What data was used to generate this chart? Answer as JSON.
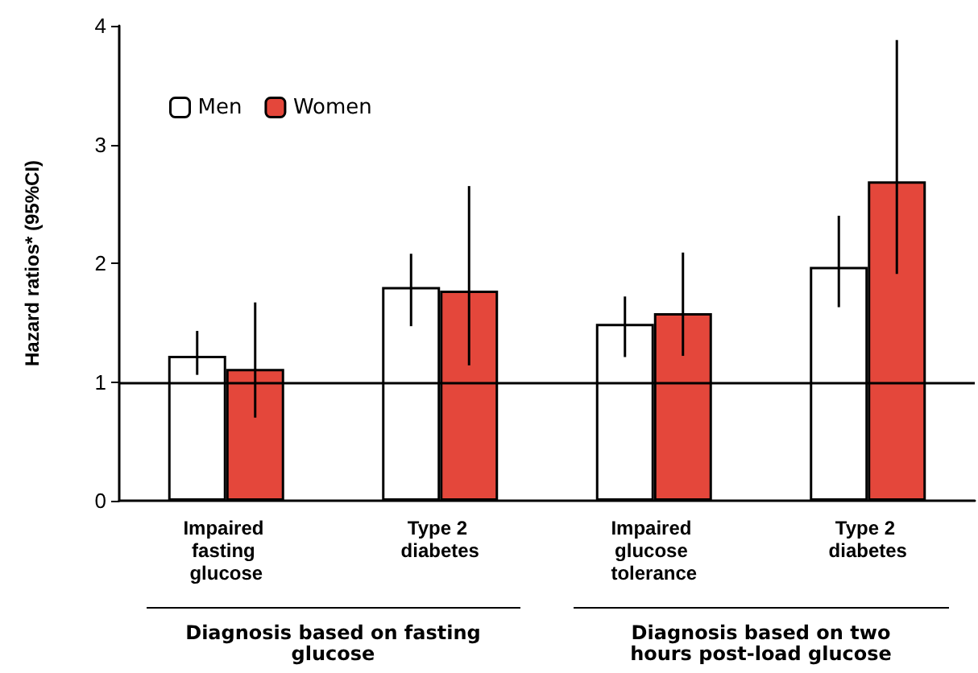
{
  "chart_data": {
    "type": "bar",
    "ylabel": "Hazard ratios* (95%CI)",
    "categories": [
      "Impaired fasting glucose",
      "Type 2 diabetes",
      "Impaired glucose tolerance",
      "Type 2 diabetes"
    ],
    "series": [
      {
        "name": "Men",
        "color": "#ffffff",
        "values": [
          1.22,
          1.8,
          1.49,
          1.97
        ],
        "errors": [
          [
            1.06,
            1.43
          ],
          [
            1.47,
            2.08
          ],
          [
            1.21,
            1.72
          ],
          [
            1.63,
            2.4
          ]
        ]
      },
      {
        "name": "Women",
        "color": "#e4473b",
        "values": [
          1.11,
          1.77,
          1.58,
          2.69
        ],
        "errors": [
          [
            0.7,
            1.67
          ],
          [
            1.14,
            2.65
          ],
          [
            1.22,
            2.09
          ],
          [
            1.91,
            3.88
          ]
        ]
      }
    ],
    "ylim": [
      0,
      4
    ],
    "yticks": [
      0,
      1,
      2,
      3,
      4
    ],
    "grid": false,
    "legend": "top left",
    "ref_lines": [
      {
        "axis": "y",
        "value": 1,
        "color": "#000000"
      }
    ],
    "annotations": [
      "Diagnosis based on fasting glucose",
      "Diagnosis based on two hours post-load glucose"
    ]
  }
}
